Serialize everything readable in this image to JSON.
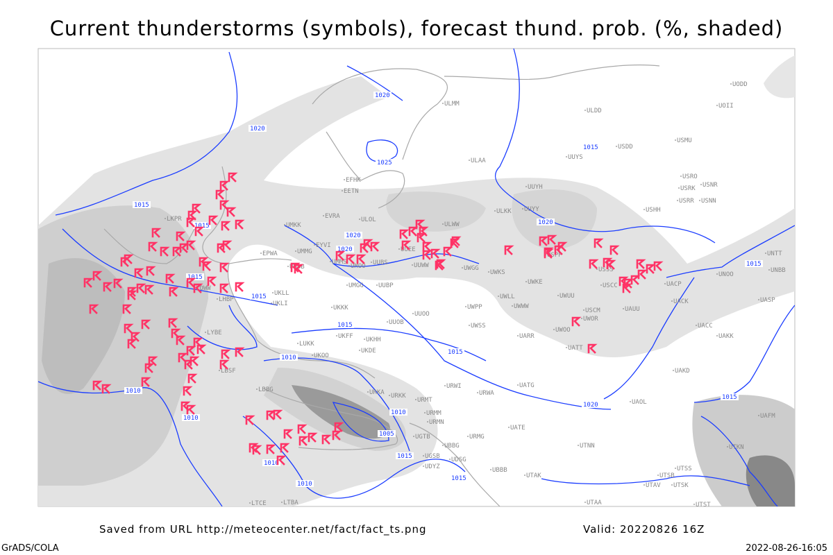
{
  "title": "Current thunderstorms (symbols), forecast thund. prob. (%, shaded)",
  "footer": {
    "saved_from": "Saved from URL http://meteocenter.net/fact/fact_ts.png",
    "valid": "Valid: 20220826 16Z",
    "software": "GrADS/COLA",
    "timestamp": "2022-08-26-16:05"
  },
  "colors": {
    "storm_symbol": "#ff3366",
    "isobar": "#1a3cff",
    "shading_light": "#e2e2e2",
    "shading_mid": "#c8c8c8",
    "shading_dark": "#9a9a9a",
    "borders": "#a0a0a0"
  },
  "legend_icons": {
    "storm": "thunderstorm-symbol-icon"
  },
  "isobar_labels": [
    "1020",
    "1020",
    "1025",
    "1015",
    "1015",
    "1015",
    "1020",
    "1020",
    "1015",
    "1015",
    "1015",
    "1010",
    "1010",
    "1010",
    "1010",
    "1005",
    "1015",
    "1010",
    "1015",
    "1020",
    "1015",
    "1020",
    "1015",
    "1010",
    "1015"
  ],
  "stations": [
    "ULMM",
    "ULAA",
    "EFHK",
    "EETN",
    "EVRA",
    "ULOL",
    "UMKK",
    "EYVI",
    "UMMG",
    "UMMS",
    "UMOO",
    "UUBS",
    "UMGG",
    "UUBP",
    "EPWA",
    "UMBB",
    "UKLL",
    "UKLI",
    "UKKK",
    "UUOO",
    "UUOB",
    "UWPP",
    "UWSS",
    "UKHH",
    "UKFF",
    "UKDE",
    "UKOO",
    "LUKK",
    "LBSF",
    "LBBG",
    "URKA",
    "URKK",
    "URMT",
    "URWA",
    "URWI",
    "URMM",
    "URMN",
    "URMG",
    "UBBB",
    "UTAK",
    "LYBE",
    "LHBP",
    "LOWW",
    "LKPR",
    "UUWW",
    "UUEE",
    "ULWW",
    "UWGG",
    "UWKS",
    "UWKE",
    "UWLL",
    "UWWW",
    "UWUU",
    "UWOO",
    "UARR",
    "UATT",
    "UATG",
    "UATE",
    "UAOL",
    "UACC",
    "UAKK",
    "UAKD",
    "UASP",
    "UACK",
    "UAUU",
    "USCC",
    "USSS",
    "USPP",
    "USCM",
    "UWOR",
    "USHH",
    "USRR",
    "USNN",
    "USRK",
    "USRO",
    "USNR",
    "USMU",
    "USDD",
    "UUYS",
    "UUYH",
    "UUYY",
    "ULKK",
    "ULDD",
    "UOII",
    "UODD",
    "UNTT",
    "UNBB",
    "UNOO",
    "UACP",
    "UTNN",
    "UTAA",
    "UTAV",
    "UTSB",
    "UTSS",
    "UTSK",
    "UTST",
    "UTKN",
    "UAFM",
    "UGTB",
    "UBBG",
    "UGSB",
    "UDYZ",
    "LTBA",
    "LTCE",
    "UDSG"
  ]
}
